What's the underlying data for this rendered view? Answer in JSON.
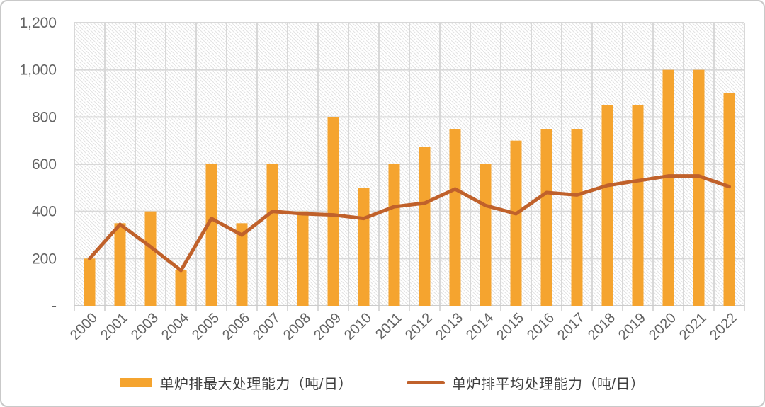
{
  "chart_data": {
    "type": "combo",
    "categories": [
      "2000",
      "2001",
      "2003",
      "2004",
      "2005",
      "2006",
      "2007",
      "2008",
      "2009",
      "2010",
      "2011",
      "2012",
      "2013",
      "2014",
      "2015",
      "2016",
      "2017",
      "2018",
      "2019",
      "2020",
      "2021",
      "2022"
    ],
    "series": [
      {
        "name": "单炉排最大处理能力（吨/日）",
        "type": "bar",
        "color": "#F5A42F",
        "values": [
          200,
          350,
          400,
          150,
          600,
          350,
          600,
          400,
          800,
          500,
          600,
          675,
          750,
          600,
          700,
          750,
          750,
          850,
          850,
          1000,
          1000,
          900
        ]
      },
      {
        "name": "单炉排平均处理能力（吨/日）",
        "type": "line",
        "color": "#C0612B",
        "values": [
          200,
          345,
          250,
          150,
          370,
          300,
          400,
          390,
          385,
          370,
          420,
          435,
          495,
          425,
          390,
          480,
          470,
          510,
          530,
          550,
          550,
          505
        ]
      }
    ],
    "y_axis": {
      "min": 0,
      "max": 1200,
      "step": 200,
      "tick_labels": [
        "-",
        "200",
        "400",
        "600",
        "800",
        "1,000",
        "1,200"
      ]
    },
    "x_axis": {
      "label_rotation_deg": 45
    },
    "grid": true,
    "plot_background": "diagonal-hatch",
    "legend_position": "bottom",
    "title": ""
  },
  "legend": {
    "items": [
      {
        "label": "单炉排最大处理能力（吨/日）",
        "swatch": "bar"
      },
      {
        "label": "单炉排平均处理能力（吨/日）",
        "swatch": "line"
      }
    ]
  },
  "colors": {
    "bar": "#F5A42F",
    "line": "#C0612B",
    "axis_text": "#636363",
    "gridline": "#D8D8D8",
    "axis_line": "#CCCCCC",
    "hatch": "#E2E2E2",
    "legend_text": "#3F3F3F",
    "border": "#C9C9C9"
  }
}
